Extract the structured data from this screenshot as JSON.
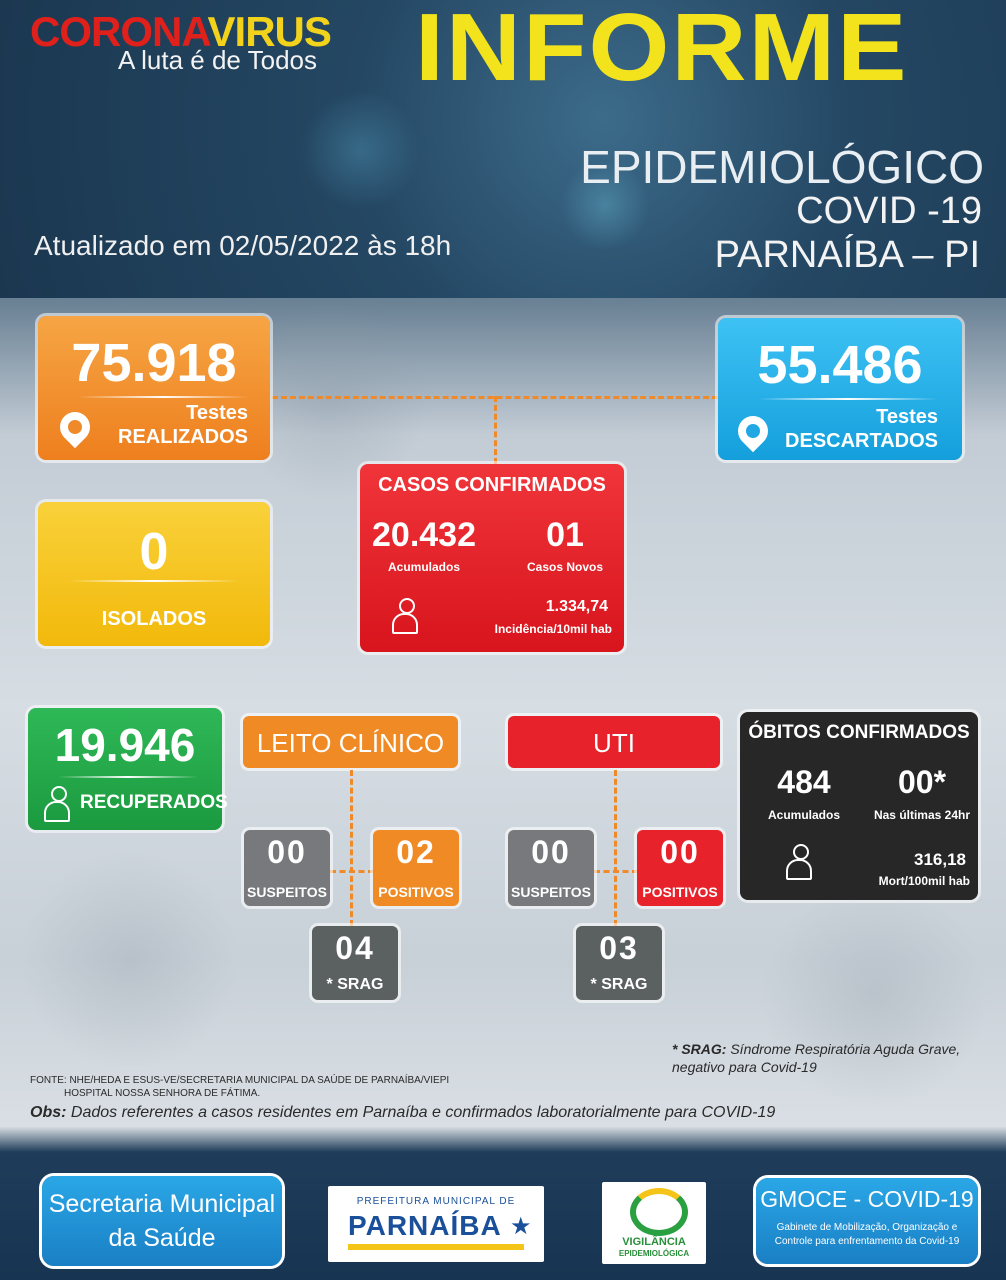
{
  "header": {
    "logo_corona": "CORONA",
    "logo_virus": "VIRUS",
    "logo_tagline": "A luta é de Todos",
    "title": "INFORME",
    "subtitle": "EPIDEMIOLÓGICO",
    "covid": "COVID -19",
    "city": "PARNAÍBA – PI",
    "updated": "Atualizado em 02/05/2022 às 18h"
  },
  "tests_done": {
    "value": "75.918",
    "label1": "Testes",
    "label2": "REALIZADOS"
  },
  "tests_discarded": {
    "value": "55.486",
    "label1": "Testes",
    "label2": "DESCARTADOS"
  },
  "isolated": {
    "value": "0",
    "label": "ISOLADOS"
  },
  "confirmed": {
    "title": "CASOS CONFIRMADOS",
    "accumulated": "20.432",
    "accumulated_label": "Acumulados",
    "new": "01",
    "new_label": "Casos Novos",
    "incidence": "1.334,74",
    "incidence_label": "Incidência/10mil hab"
  },
  "recovered": {
    "value": "19.946",
    "label": "RECUPERADOS"
  },
  "clinical_bed": {
    "title": "LEITO CLÍNICO",
    "suspects": "00",
    "suspects_label": "SUSPEITOS",
    "positives": "02",
    "positives_label": "POSITIVOS",
    "srag": "04",
    "srag_label": "* SRAG"
  },
  "icu": {
    "title": "UTI",
    "suspects": "00",
    "suspects_label": "SUSPEITOS",
    "positives": "00",
    "positives_label": "POSITIVOS",
    "srag": "03",
    "srag_label": "* SRAG"
  },
  "deaths": {
    "title": "ÓBITOS CONFIRMADOS",
    "accumulated": "484",
    "accumulated_label": "Acumulados",
    "last24": "00*",
    "last24_label": "Nas últimas 24hr",
    "mortality": "316,18",
    "mortality_label": "Mort/100mil hab"
  },
  "notes": {
    "srag_key": "* SRAG:",
    "srag_text": " Síndrome Respiratória Aguda Grave,",
    "srag_text2": "negativo para Covid-19",
    "source1": "FONTE: NHE/HEDA E ESUS-VE/SECRETARIA MUNICIPAL DA SAÚDE DE PARNAÍBA/VIEPI",
    "source2": "HOSPITAL NOSSA SENHORA DE FÁTIMA.",
    "obs_key": "Obs:",
    "obs_text": " Dados referentes a casos residentes em Parnaíba e confirmados laboratorialmente para COVID-19"
  },
  "footer": {
    "secretaria1": "Secretaria Municipal",
    "secretaria2": "da Saúde",
    "prefeitura_top": "PREFEITURA MUNICIPAL DE",
    "prefeitura_name": "PARNAÍBA",
    "vigilancia1": "VIGILÂNCIA",
    "vigilancia2": "EPIDEMIOLÓGICA",
    "gmoce_title": "GMOCE - COVID-19",
    "gmoce_text1": "Gabinete de Mobilização, Organização e",
    "gmoce_text2": "Controle para enfrentamento da Covid-19"
  },
  "colors": {
    "orange": "#f08a24",
    "cyan": "#1aa8e6",
    "yellow": "#f6c514",
    "red": "#e8222b",
    "green": "#21a347",
    "grey": "#75767a",
    "dark_grey": "#5b6060",
    "black": "#262626"
  }
}
